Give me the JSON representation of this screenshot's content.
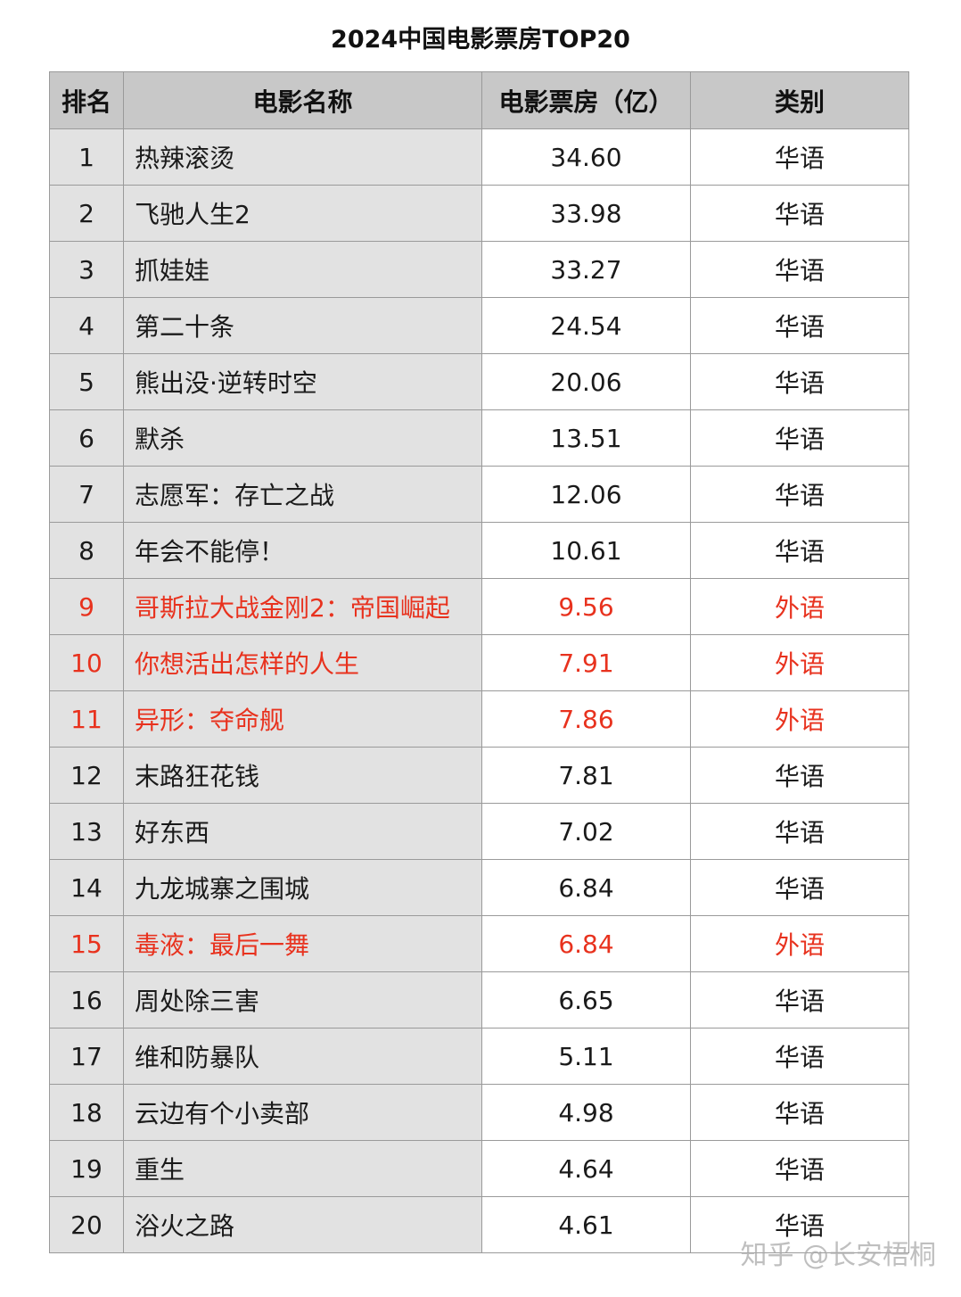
{
  "title": "2024中国电影票房TOP20",
  "table": {
    "header": [
      "排名",
      "电影名称",
      "电影票房（亿）",
      "类别"
    ],
    "rows": [
      {
        "cells": [
          "1",
          "热辣滚烫",
          "34.60",
          "华语"
        ],
        "color": "#1a1a1a"
      },
      {
        "cells": [
          "2",
          "飞驰人生2",
          "33.98",
          "华语"
        ],
        "color": "#1a1a1a"
      },
      {
        "cells": [
          "3",
          "抓娃娃",
          "33.27",
          "华语"
        ],
        "color": "#1a1a1a"
      },
      {
        "cells": [
          "4",
          "第二十条",
          "24.54",
          "华语"
        ],
        "color": "#1a1a1a"
      },
      {
        "cells": [
          "5",
          "熊出没·逆转时空",
          "20.06",
          "华语"
        ],
        "color": "#1a1a1a"
      },
      {
        "cells": [
          "6",
          "默杀",
          "13.51",
          "华语"
        ],
        "color": "#1a1a1a"
      },
      {
        "cells": [
          "7",
          "志愿军：存亡之战",
          "12.06",
          "华语"
        ],
        "color": "#1a1a1a"
      },
      {
        "cells": [
          "8",
          "年会不能停！",
          "10.61",
          "华语"
        ],
        "color": "#1a1a1a"
      },
      {
        "cells": [
          "9",
          "哥斯拉大战金刚2：帝国崛起",
          "9.56",
          "外语"
        ],
        "color": "#e8321e"
      },
      {
        "cells": [
          "10",
          "你想活出怎样的人生",
          "7.91",
          "外语"
        ],
        "color": "#e8321e"
      },
      {
        "cells": [
          "11",
          "异形：夺命舰",
          "7.86",
          "外语"
        ],
        "color": "#e8321e"
      },
      {
        "cells": [
          "12",
          "末路狂花钱",
          "7.81",
          "华语"
        ],
        "color": "#1a1a1a"
      },
      {
        "cells": [
          "13",
          "好东西",
          "7.02",
          "华语"
        ],
        "color": "#1a1a1a"
      },
      {
        "cells": [
          "14",
          "九龙城寨之围城",
          "6.84",
          "华语"
        ],
        "color": "#1a1a1a"
      },
      {
        "cells": [
          "15",
          "毒液：最后一舞",
          "6.84",
          "外语"
        ],
        "color": "#e8321e"
      },
      {
        "cells": [
          "16",
          "周处除三害",
          "6.65",
          "华语"
        ],
        "color": "#1a1a1a"
      },
      {
        "cells": [
          "17",
          "维和防暴队",
          "5.11",
          "华语"
        ],
        "color": "#1a1a1a"
      },
      {
        "cells": [
          "18",
          "云边有个小卖部",
          "4.98",
          "华语"
        ],
        "color": "#1a1a1a"
      },
      {
        "cells": [
          "19",
          "重生",
          "4.64",
          "华语"
        ],
        "color": "#1a1a1a"
      },
      {
        "cells": [
          "20",
          "浴火之路",
          "4.61",
          "华语"
        ],
        "color": "#1a1a1a"
      }
    ]
  },
  "watermark": "知乎 @长安梧桐"
}
